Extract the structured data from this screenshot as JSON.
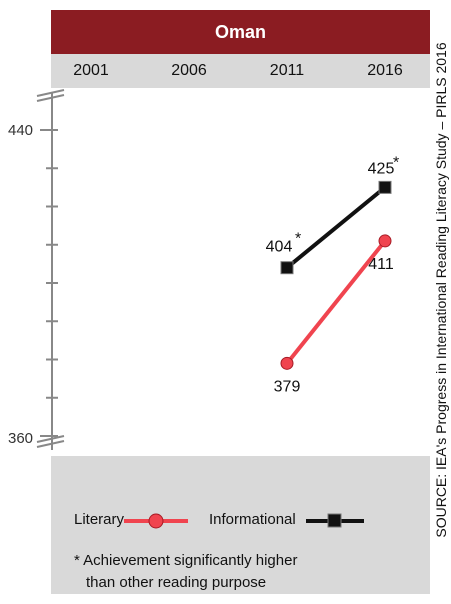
{
  "chart_data": {
    "type": "line",
    "title": "Oman",
    "x": [
      "2001",
      "2006",
      "2011",
      "2016"
    ],
    "series": [
      {
        "name": "Literary",
        "color": "#f0444f",
        "marker": "circle",
        "values": [
          null,
          null,
          379,
          411
        ],
        "labels": [
          "",
          "",
          "379",
          "411"
        ]
      },
      {
        "name": "Informational",
        "color": "#111111",
        "marker": "square",
        "values": [
          null,
          null,
          404,
          425
        ],
        "labels": [
          "",
          "",
          "404",
          "425"
        ],
        "significant": [
          false,
          false,
          true,
          true
        ]
      }
    ],
    "ylim": [
      360,
      440
    ],
    "yticks": [
      "440",
      "360"
    ],
    "asterisk": "*",
    "note": "* Achievement significantly higher than other reading purpose",
    "note_lines": [
      "* Achievement significantly higher",
      "than other reading purpose"
    ],
    "source": "SOURCE: IEA's Progress in International Reading Literacy Study – PIRLS 2016"
  }
}
